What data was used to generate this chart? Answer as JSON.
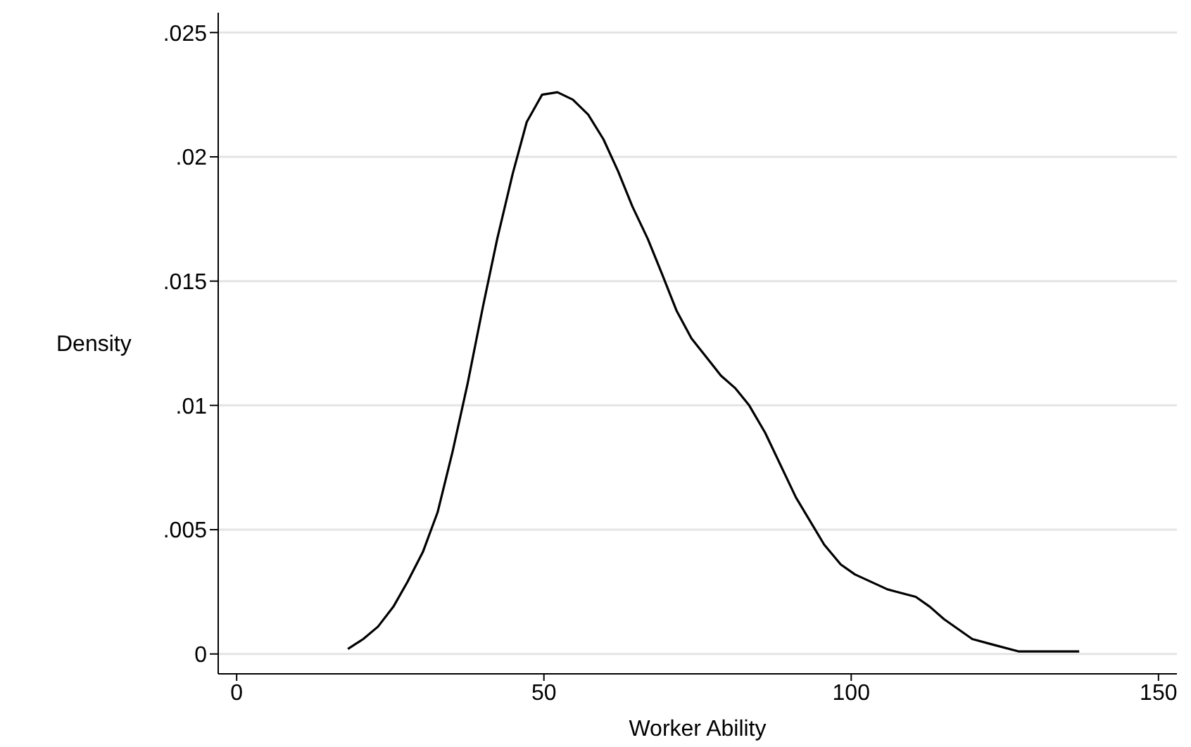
{
  "chart_data": {
    "type": "line",
    "xlabel": "Worker Ability",
    "ylabel": "Density",
    "xlim": [
      -3,
      153
    ],
    "xticks": [
      0,
      50,
      100,
      150
    ],
    "ylim": [
      -0.0008,
      0.0258
    ],
    "yticks": [
      0,
      {
        "value": 0.005,
        "label": ".005"
      },
      {
        "value": 0.01,
        "label": ".01"
      },
      {
        "value": 0.015,
        "label": ".015"
      },
      {
        "value": 0.02,
        "label": ".02"
      },
      {
        "value": 0.025,
        "label": ".025"
      }
    ],
    "grid": "y",
    "legend": false,
    "marker": "none",
    "line_style": "solid",
    "series": [
      {
        "color": "#000000",
        "x": [
          18.1,
          20.6,
          23.0,
          25.5,
          27.8,
          30.3,
          32.7,
          35.1,
          37.6,
          40.1,
          42.4,
          44.9,
          47.2,
          49.7,
          52.2,
          54.7,
          57.2,
          59.7,
          62.1,
          64.4,
          66.9,
          69.2,
          71.6,
          74.0,
          78.8,
          81.1,
          83.4,
          86.0,
          91.0,
          95.6,
          98.3,
          100.6,
          105.9,
          110.5,
          112.8,
          115.1,
          119.7,
          122.7,
          127.3,
          137.1
        ],
        "values": [
          0.0002,
          0.0006,
          0.0011,
          0.0019,
          0.0029,
          0.0041,
          0.0057,
          0.0081,
          0.0109,
          0.014,
          0.0167,
          0.0193,
          0.0214,
          0.0225,
          0.0226,
          0.0223,
          0.0217,
          0.0207,
          0.0194,
          0.018,
          0.0167,
          0.0153,
          0.0138,
          0.0127,
          0.0112,
          0.0107,
          0.01,
          0.0089,
          0.0063,
          0.0044,
          0.0036,
          0.0032,
          0.0026,
          0.0023,
          0.0019,
          0.0014,
          0.0006,
          0.0004,
          0.0001,
          0.0001
        ]
      }
    ]
  }
}
